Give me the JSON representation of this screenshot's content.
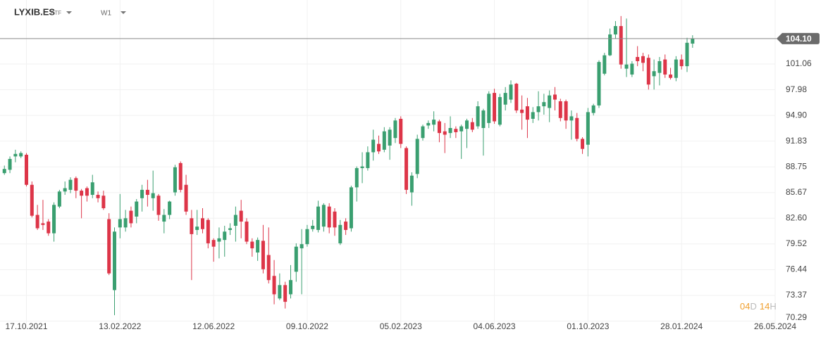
{
  "chart_data": {
    "type": "candlestick",
    "title": "LYXIB.ES",
    "subtitle": "ETF",
    "timeframe": "W1",
    "up_color": "#3a9f70",
    "down_color": "#dd3548",
    "grid": true,
    "ylim": [
      70.0,
      108.72
    ],
    "yticks": [
      70.29,
      73.37,
      76.44,
      79.52,
      {
        "value": 82.6,
        "label": "82.60"
      },
      85.67,
      88.75,
      91.83,
      {
        "value": 94.9,
        "label": "94.90"
      },
      97.98,
      101.06
    ],
    "xlim": [
      -0.8,
      140
    ],
    "xticks": [
      {
        "value": 4,
        "label": "17.10.2021"
      },
      {
        "value": 21,
        "label": "13.02.2022"
      },
      {
        "value": 38,
        "label": "12.06.2022"
      },
      {
        "value": 55,
        "label": "09.10.2022"
      },
      {
        "value": 72,
        "label": "05.02.2023"
      },
      {
        "value": 89,
        "label": "04.06.2023"
      },
      {
        "value": 106,
        "label": "01.10.2023"
      },
      {
        "value": 123,
        "label": "28.01.2024"
      },
      {
        "value": 140,
        "label": "26.05.2024"
      }
    ],
    "last_price": {
      "value": 104.1,
      "label": "104.10"
    },
    "timer": {
      "days": "04",
      "days_unit": "D",
      "hours": "14",
      "hours_unit": "H"
    },
    "open": [
      88.0,
      88.4,
      90.0,
      90.0,
      90.2,
      86.6,
      83.0,
      82.0,
      82.2,
      80.8,
      84.0,
      85.8,
      86.0,
      87.4,
      85.9,
      86.2,
      85.4,
      85.4,
      85.3,
      82.5,
      74.0,
      81.5,
      81.5,
      83.5,
      82.8,
      85.0,
      86.0,
      85.0,
      85.3,
      82.2,
      83.0,
      85.7,
      89.2,
      86.6,
      82.6,
      81.2,
      82.6,
      82.4,
      80.0,
      79.8,
      80.0,
      81.2,
      81.7,
      83.5,
      82.2,
      79.8,
      78.5,
      79.9,
      78.2,
      75.7,
      73.0,
      74.6,
      73.5,
      76.2,
      79.0,
      79.5,
      81.3,
      81.2,
      81.6,
      84.0,
      83.4,
      79.6,
      82.2,
      81.4,
      86.3,
      88.6,
      88.6,
      90.5,
      91.5,
      90.8,
      91.3,
      92.2,
      94.5,
      91.0,
      85.7,
      87.9,
      92.2,
      93.7,
      93.8,
      94.2,
      93.0,
      92.8,
      93.3,
      93.0,
      93.3,
      94.1,
      93.6,
      93.4,
      94.0,
      97.6,
      93.8,
      96.2,
      96.8,
      98.7,
      95.6,
      96.0,
      94.5,
      95.3,
      96.0,
      95.8,
      97.4,
      96.6,
      96.6,
      94.3,
      94.6,
      92.1,
      91.4,
      95.2,
      96.1,
      99.9,
      102.1,
      104.6,
      105.6,
      100.5,
      99.8,
      101.9,
      102.0,
      101.8,
      99.6,
      100.0,
      101.6,
      99.8,
      99.4,
      101.6,
      100.8,
      103.5
    ],
    "high": [
      88.9,
      90.0,
      90.8,
      90.6,
      90.4,
      87.0,
      84.2,
      84.8,
      82.5,
      84.5,
      86.0,
      87.0,
      87.5,
      87.6,
      86.1,
      86.4,
      87.8,
      85.8,
      85.9,
      83.2,
      81.5,
      85.5,
      83.6,
      84.0,
      84.9,
      86.6,
      87.2,
      88.3,
      85.5,
      83.7,
      84.7,
      89.0,
      89.4,
      87.8,
      83.6,
      83.6,
      83.8,
      82.6,
      80.2,
      81.5,
      81.7,
      82.0,
      84.0,
      84.8,
      82.6,
      80.2,
      80.3,
      81.8,
      81.5,
      77.6,
      76.0,
      75.0,
      77.0,
      79.6,
      81.3,
      81.8,
      82.4,
      84.7,
      84.4,
      84.4,
      83.8,
      82.4,
      82.6,
      86.5,
      88.8,
      90.5,
      91.2,
      93.2,
      92.5,
      93.5,
      93.5,
      94.6,
      94.8,
      91.2,
      88.1,
      92.6,
      93.8,
      94.3,
      95.4,
      94.4,
      94.0,
      94.8,
      93.6,
      93.8,
      94.5,
      94.6,
      96.6,
      95.7,
      97.8,
      98.1,
      97.5,
      98.3,
      99.1,
      98.8,
      97.3,
      97.0,
      95.9,
      97.8,
      97.5,
      97.9,
      98.3,
      96.9,
      96.8,
      95.5,
      95.2,
      92.3,
      95.8,
      96.3,
      101.5,
      102.4,
      105.3,
      106.2,
      106.8,
      106.5,
      101.4,
      103.2,
      102.4,
      102.2,
      101.6,
      101.9,
      102.2,
      100.6,
      102.0,
      102.2,
      104.2,
      104.5
    ],
    "low": [
      87.8,
      88.0,
      89.3,
      89.8,
      86.4,
      82.7,
      81.2,
      81.2,
      80.5,
      79.8,
      83.8,
      85.4,
      85.6,
      85.0,
      82.6,
      84.6,
      85.0,
      84.5,
      83.6,
      75.8,
      71.0,
      80.2,
      81.0,
      81.5,
      82.0,
      83.4,
      84.0,
      83.5,
      82.3,
      80.8,
      82.5,
      85.3,
      85.7,
      83.0,
      75.2,
      80.6,
      80.8,
      79.0,
      77.4,
      77.8,
      78.0,
      80.6,
      79.8,
      80.2,
      79.5,
      78.0,
      77.5,
      76.0,
      74.8,
      72.3,
      72.8,
      71.8,
      73.0,
      75.0,
      73.5,
      79.2,
      81.0,
      80.9,
      81.0,
      80.8,
      80.5,
      79.4,
      80.6,
      81.0,
      84.6,
      86.8,
      88.3,
      89.5,
      90.3,
      90.5,
      89.6,
      91.6,
      91.0,
      85.5,
      84.1,
      87.4,
      91.9,
      93.3,
      93.0,
      91.7,
      90.4,
      92.2,
      92.2,
      89.7,
      91.0,
      92.9,
      93.3,
      90.1,
      93.4,
      93.9,
      93.6,
      95.5,
      96.4,
      95.2,
      93.2,
      92.2,
      94.0,
      94.3,
      95.0,
      94.1,
      95.5,
      94.2,
      93.3,
      92.0,
      91.8,
      90.3,
      90.0,
      94.9,
      95.8,
      99.7,
      102.0,
      104.1,
      100.5,
      99.5,
      99.5,
      100.8,
      100.2,
      98.0,
      98.0,
      98.5,
      99.4,
      99.2,
      99.0,
      100.4,
      100.1,
      103.0
    ],
    "close": [
      88.5,
      89.7,
      90.3,
      90.4,
      86.6,
      82.9,
      81.4,
      81.8,
      80.8,
      84.2,
      85.8,
      86.2,
      87.2,
      85.9,
      85.3,
      85.3,
      86.9,
      85.0,
      83.8,
      76.0,
      81.0,
      82.5,
      82.6,
      82.0,
      84.6,
      86.0,
      85.4,
      85.6,
      83.0,
      83.0,
      84.6,
      88.7,
      86.0,
      83.4,
      80.7,
      81.6,
      81.3,
      79.6,
      79.2,
      80.2,
      81.0,
      81.4,
      83.0,
      82.2,
      79.8,
      79.0,
      80.0,
      76.5,
      75.2,
      73.5,
      74.6,
      72.6,
      75.2,
      79.2,
      79.5,
      81.3,
      81.7,
      84.0,
      84.2,
      81.5,
      81.5,
      81.8,
      81.2,
      86.3,
      88.6,
      88.8,
      90.5,
      92.0,
      90.6,
      93.0,
      93.2,
      94.3,
      91.5,
      86.0,
      87.7,
      92.1,
      93.6,
      94.0,
      94.4,
      92.8,
      92.6,
      93.4,
      92.9,
      93.6,
      94.3,
      93.2,
      96.0,
      95.5,
      97.5,
      94.2,
      97.1,
      97.6,
      98.6,
      95.5,
      95.2,
      94.4,
      95.3,
      96.0,
      96.5,
      97.3,
      96.8,
      94.6,
      94.3,
      94.8,
      92.1,
      90.9,
      95.3,
      96.1,
      101.3,
      102.1,
      104.6,
      105.6,
      101.0,
      101.0,
      101.1,
      101.4,
      101.2,
      98.6,
      100.2,
      101.4,
      99.8,
      99.4,
      101.6,
      100.8,
      103.6,
      104.1
    ]
  }
}
